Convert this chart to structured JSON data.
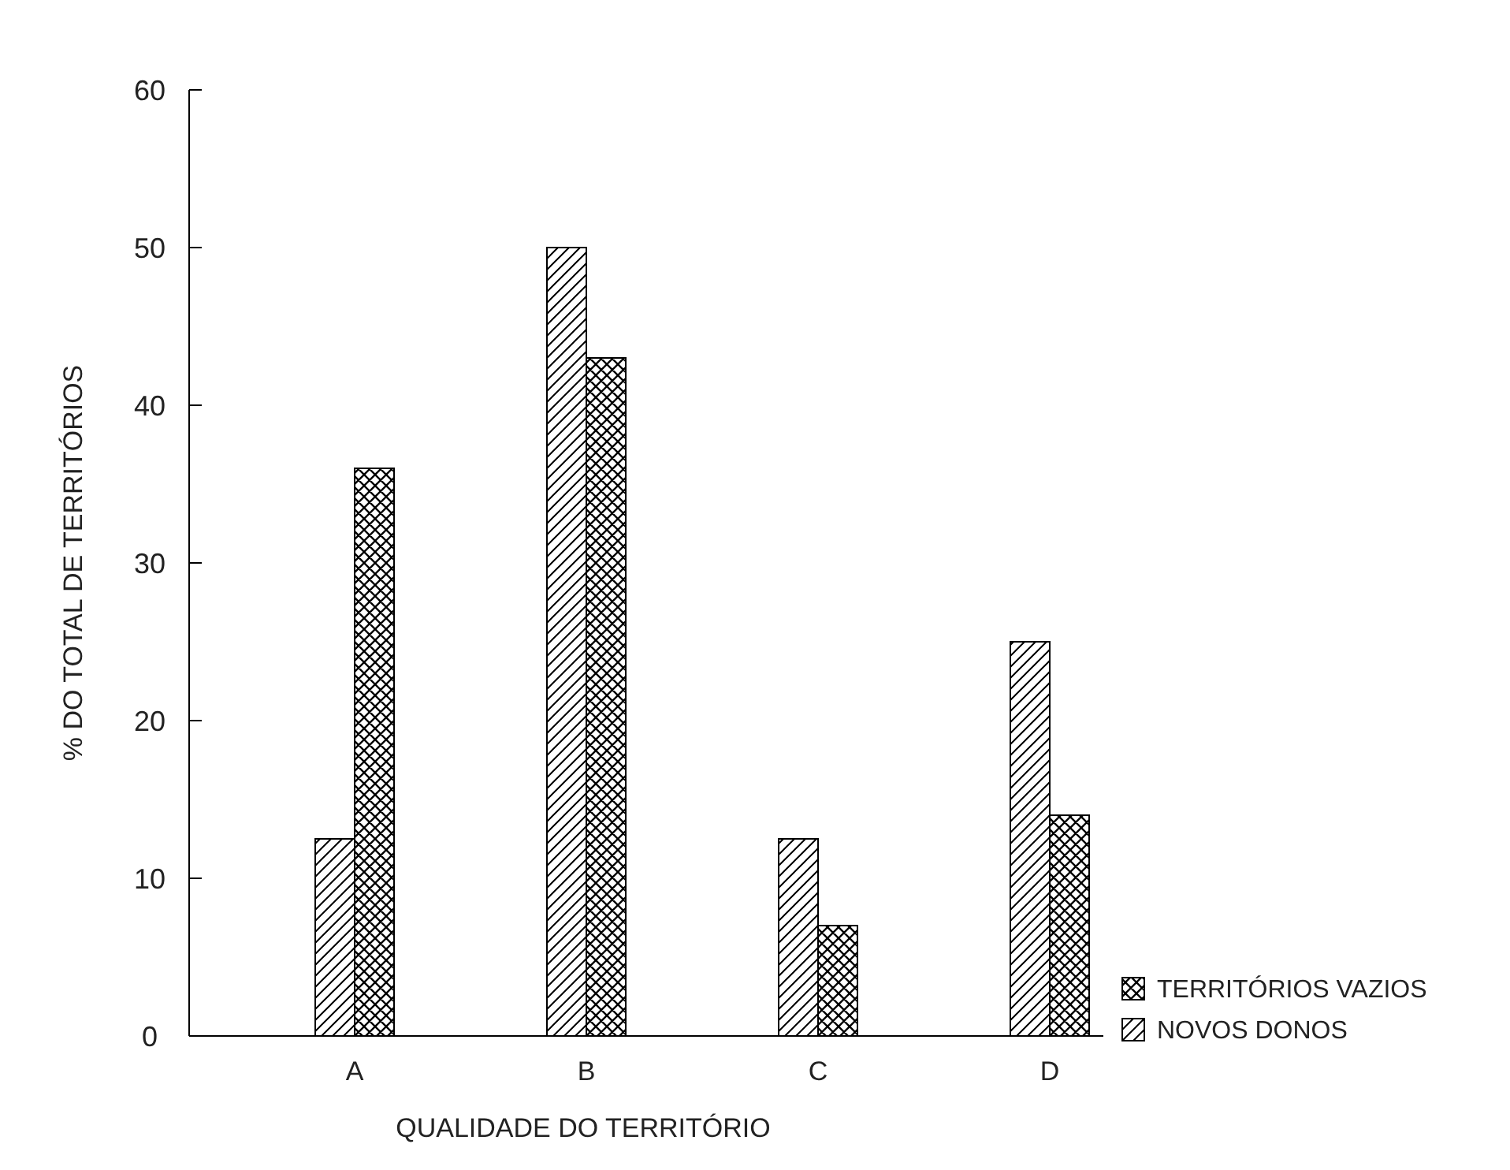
{
  "chart_data": {
    "type": "bar",
    "xlabel": "QUALIDADE DO TERRITÓRIO",
    "ylabel": "% DO TOTAL DE TERRITÓRIOS",
    "categories": [
      "A",
      "B",
      "C",
      "D"
    ],
    "series": [
      {
        "name": "NOVOS DONOS",
        "color": "#000000",
        "values": [
          12.5,
          50,
          12.5,
          25
        ]
      },
      {
        "name": "TERRITÓRIOS VAZIOS",
        "color": "#000000",
        "values": [
          36,
          43,
          7,
          14
        ]
      }
    ],
    "ylim": [
      0,
      60
    ],
    "yticks": [
      0,
      10,
      20,
      30,
      40,
      50,
      60
    ],
    "grid": false,
    "legend": "bottom right"
  }
}
